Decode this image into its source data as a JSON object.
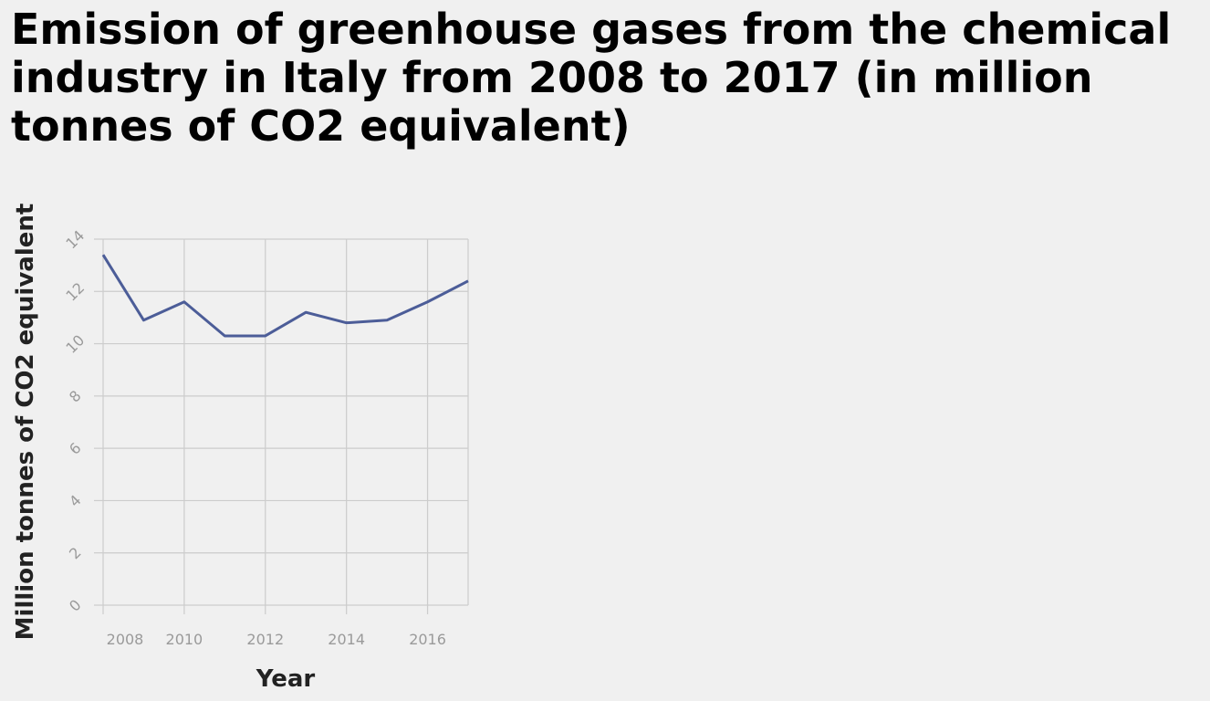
{
  "chart_data": {
    "type": "line",
    "title": "Emission of greenhouse gases from the chemical industry in Italy from 2008 to 2017 (in million tonnes of CO2 equivalent)",
    "xlabel": "Year",
    "ylabel": "Million tonnes of CO2 equivalent",
    "x": [
      2008,
      2009,
      2010,
      2011,
      2012,
      2013,
      2014,
      2015,
      2016,
      2017
    ],
    "series": [
      {
        "values": [
          13.4,
          10.9,
          11.6,
          10.3,
          10.3,
          11.2,
          10.8,
          10.9,
          11.6,
          12.4
        ]
      }
    ],
    "xlim": [
      2008,
      2017
    ],
    "ylim": [
      0,
      14
    ],
    "xticks": [
      2008,
      2010,
      2012,
      2014,
      2016
    ],
    "xtick_labels": [
      "2008",
      "2010",
      "2012",
      "2014",
      "2016"
    ],
    "yticks": [
      0,
      2,
      4,
      6,
      8,
      10,
      12,
      14
    ],
    "ytick_labels": [
      "0",
      "2",
      "4",
      "6",
      "8",
      "10",
      "12",
      "14"
    ],
    "grid": true,
    "colors": {
      "line": "#4c5d98",
      "grid": "#cccccc",
      "background": "#f0f0f0"
    }
  }
}
